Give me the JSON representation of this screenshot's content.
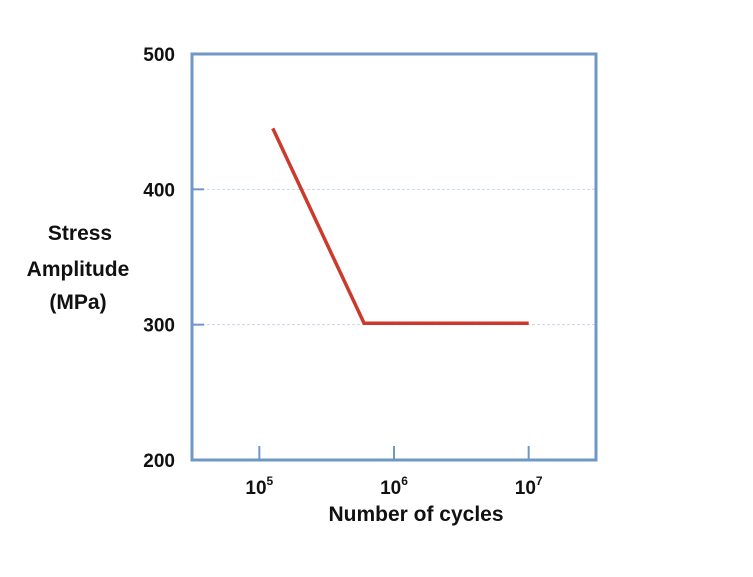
{
  "chart_data": {
    "type": "line",
    "title": "",
    "xlabel": "Number of cycles",
    "ylabel": [
      "Stress",
      "Amplitude",
      "(MPa)"
    ],
    "xscale": "log",
    "xlim": [
      31623,
      31622777
    ],
    "ylim": [
      200,
      500
    ],
    "yticks": [
      200,
      300,
      400,
      500
    ],
    "xticks": [
      {
        "value": 100000,
        "base": "10",
        "exp": "5"
      },
      {
        "value": 1000000,
        "base": "10",
        "exp": "6"
      },
      {
        "value": 10000000,
        "base": "10",
        "exp": "7"
      }
    ],
    "grid": true,
    "series": [
      {
        "color": "#cc3a2c",
        "x": [
          125900,
          600000,
          10000000
        ],
        "y": [
          445,
          301,
          301
        ]
      }
    ],
    "colors": {
      "frame": "#6f98c6",
      "grid": "#c8d6e8",
      "line": "#cc3a2c"
    }
  }
}
